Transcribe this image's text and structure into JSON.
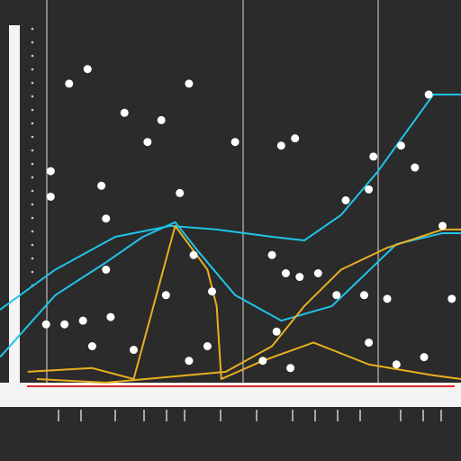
{
  "chart_data": [
    {
      "type": "line",
      "xlim": [
        0,
        100
      ],
      "ylim": [
        0,
        100
      ],
      "series": [
        {
          "color": "#1fc4e8",
          "x": [
            0,
            12,
            25,
            37,
            47,
            59,
            66,
            74,
            82,
            94,
            100
          ],
          "values": [
            20,
            31,
            40,
            43,
            42,
            40,
            39,
            46,
            58,
            79,
            79
          ]
        },
        {
          "color": "#1fc4e8",
          "x": [
            0,
            12,
            23,
            31,
            38,
            43,
            51,
            61,
            72,
            86,
            96,
            100
          ],
          "values": [
            7,
            24,
            33,
            40,
            44,
            36,
            24,
            17,
            21,
            38,
            41,
            41
          ]
        },
        {
          "color": "#e8b020",
          "x": [
            6,
            20,
            29,
            38,
            45,
            47,
            48,
            57,
            68,
            80,
            94,
            100
          ],
          "values": [
            3,
            4,
            1,
            43,
            31,
            21,
            1,
            6,
            11,
            5,
            2,
            1
          ]
        },
        {
          "color": "#e8b020",
          "x": [
            8,
            23,
            49,
            59,
            66,
            74,
            84,
            96,
            100
          ],
          "values": [
            1,
            0,
            3,
            10,
            21,
            31,
            37,
            42,
            42
          ]
        }
      ]
    },
    {
      "type": "scatter",
      "xlim": [
        0,
        100
      ],
      "ylim": [
        0,
        100
      ],
      "color": "#ffffff",
      "x": [
        19,
        15,
        41,
        27,
        35,
        32,
        51,
        61,
        64,
        81,
        90,
        93,
        87,
        11,
        11,
        22,
        39,
        23,
        80,
        75,
        96,
        42,
        59,
        23,
        69,
        62,
        46,
        36,
        65,
        79,
        73,
        84,
        98,
        24,
        18,
        10,
        14,
        20,
        29,
        41,
        45,
        60,
        80,
        86,
        92,
        57,
        63
      ],
      "values": [
        86,
        82,
        82,
        74,
        72,
        66,
        66,
        65,
        67,
        62,
        59,
        79,
        65,
        58,
        51,
        54,
        52,
        45,
        53,
        50,
        43,
        35,
        35,
        31,
        30,
        30,
        25,
        24,
        29,
        24,
        24,
        23,
        23,
        18,
        17,
        16,
        16,
        10,
        9,
        6,
        10,
        14,
        11,
        5,
        7,
        6,
        4
      ]
    }
  ]
}
